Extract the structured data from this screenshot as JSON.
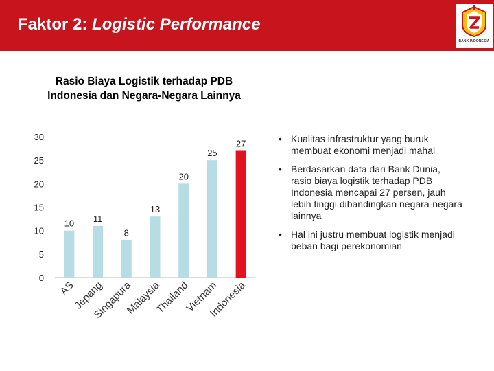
{
  "header": {
    "title_prefix": "Faktor 2:",
    "title_italic": "Logistic Performance",
    "logo_caption": "BANK INDONESIA"
  },
  "colors": {
    "header_bg": "#c8141d",
    "bar_default": "#b6dde3",
    "bar_highlight": "#e3121f"
  },
  "chart_title_lines": [
    "Rasio Biaya Logistik terhadap PDB",
    "Indonesia dan Negara-Negara Lainnya"
  ],
  "chart_data": {
    "type": "bar",
    "title": "Rasio Biaya Logistik terhadap PDB Indonesia dan Negara-Negara Lainnya",
    "categories": [
      "AS",
      "Jepang",
      "Singapura",
      "Malaysia",
      "Thailand",
      "Vietnam",
      "Indonesia"
    ],
    "values": [
      10,
      11,
      8,
      13,
      20,
      25,
      27
    ],
    "highlight_index": 6,
    "ylim": [
      0,
      30
    ],
    "yticks": [
      0,
      5,
      10,
      15,
      20,
      25,
      30
    ],
    "grid": false,
    "legend": "none"
  },
  "bullets": [
    "Kualitas infrastruktur yang buruk membuat ekonomi menjadi mahal",
    "Berdasarkan data dari Bank Dunia, rasio biaya logistik terhadap PDB Indonesia mencapai 27 persen, jauh lebih tinggi dibandingkan negara-negara lainnya",
    "Hal ini justru membuat logistik menjadi beban bagi perekonomian"
  ],
  "bullet_glyph": "•"
}
